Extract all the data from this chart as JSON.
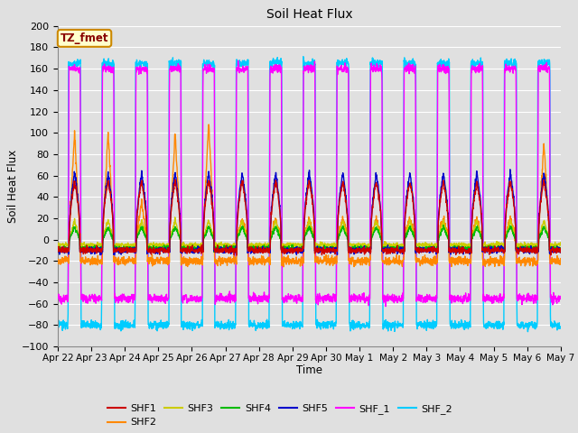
{
  "title": "Soil Heat Flux",
  "xlabel": "Time",
  "ylabel": "Soil Heat Flux",
  "ylim": [
    -100,
    200
  ],
  "yticks": [
    -100,
    -80,
    -60,
    -40,
    -20,
    0,
    20,
    40,
    60,
    80,
    100,
    120,
    140,
    160,
    180,
    200
  ],
  "xtick_labels": [
    "Apr 22",
    "Apr 23",
    "Apr 24",
    "Apr 25",
    "Apr 26",
    "Apr 27",
    "Apr 28",
    "Apr 29",
    "Apr 30",
    "May 1",
    "May 2",
    "May 3",
    "May 4",
    "May 5",
    "May 6",
    "May 7"
  ],
  "series_colors": {
    "SHF1": "#cc0000",
    "SHF2": "#ff8800",
    "SHF3": "#cccc00",
    "SHF4": "#00bb00",
    "SHF5": "#0000cc",
    "SHF_1": "#ff00ff",
    "SHF_2": "#00ccff"
  },
  "annotation_text": "TZ_fmet",
  "annotation_bg": "#ffffcc",
  "annotation_border": "#cc8800",
  "annotation_text_color": "#880000",
  "background_color": "#e0e0e0",
  "plot_bg_color": "#e0e0e0",
  "grid_color": "#ffffff",
  "n_days": 15,
  "points_per_day": 144
}
